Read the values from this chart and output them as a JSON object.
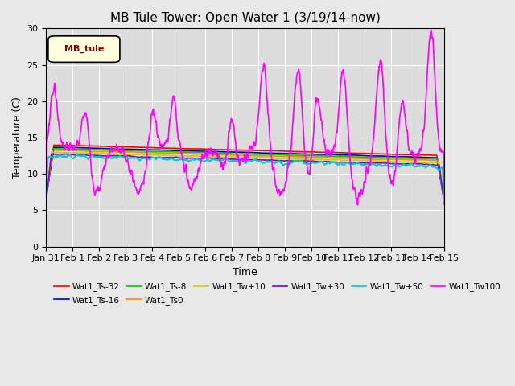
{
  "title": "MB Tule Tower: Open Water 1 (3/19/14-now)",
  "xlabel": "Time",
  "ylabel": "Temperature (C)",
  "ylim": [
    0,
    30
  ],
  "x_tick_labels": [
    "Jan 31",
    "Feb 1",
    "Feb 2",
    "Feb 3",
    "Feb 4",
    "Feb 5",
    "Feb 6",
    "Feb 7",
    "Feb 8",
    "Feb 9",
    "Feb 10",
    "Feb 11",
    "Feb 12",
    "Feb 13",
    "Feb 14",
    "Feb 15"
  ],
  "x_tick_positions": [
    0,
    1,
    2,
    3,
    4,
    5,
    6,
    7,
    8,
    9,
    10,
    11,
    12,
    13,
    14,
    15
  ],
  "legend_label": "MB_tule",
  "series_names": [
    "Wat1_Ts-32",
    "Wat1_Ts-16",
    "Wat1_Ts-8",
    "Wat1_Ts0",
    "Wat1_Tw+10",
    "Wat1_Tw+30",
    "Wat1_Tw+50",
    "Wat1_Tw100"
  ],
  "series_colors": [
    "#ff0000",
    "#0000cc",
    "#00cc00",
    "#ff8800",
    "#cccc00",
    "#8800cc",
    "#00cccc",
    "#ff00ff"
  ],
  "bg_color": "#e8e8e8",
  "plot_bg": "#dcdcdc"
}
